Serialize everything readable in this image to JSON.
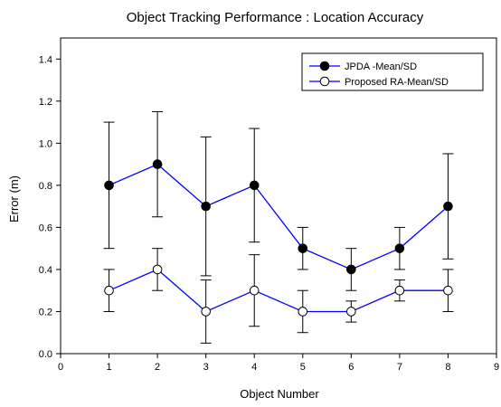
{
  "chart_data": {
    "type": "line",
    "title": "Object Tracking Performance : Location Accuracy",
    "xlabel": "Object Number",
    "ylabel": "Error (m)",
    "xlim": [
      0,
      9
    ],
    "ylim": [
      0.0,
      1.5
    ],
    "xticks": [
      "0",
      "1",
      "2",
      "3",
      "4",
      "5",
      "6",
      "7",
      "8",
      "9"
    ],
    "yticks": [
      "0.0",
      "0.2",
      "0.4",
      "0.6",
      "0.8",
      "1.0",
      "1.2",
      "1.4"
    ],
    "x": [
      1,
      2,
      3,
      4,
      5,
      6,
      7,
      8
    ],
    "grid": false,
    "legend_position": "top-right",
    "line_color": "#0000ff",
    "series": [
      {
        "name": "JPDA -Mean/SD",
        "marker": "filled-circle",
        "values": [
          0.8,
          0.9,
          0.7,
          0.8,
          0.5,
          0.4,
          0.5,
          0.7
        ],
        "sd": [
          0.3,
          0.25,
          0.33,
          0.27,
          0.1,
          0.1,
          0.1,
          0.25
        ]
      },
      {
        "name": "Proposed RA-Mean/SD",
        "marker": "open-circle",
        "values": [
          0.3,
          0.4,
          0.2,
          0.3,
          0.2,
          0.2,
          0.3,
          0.3
        ],
        "sd": [
          0.1,
          0.1,
          0.15,
          0.17,
          0.1,
          0.05,
          0.05,
          0.1
        ]
      }
    ]
  }
}
